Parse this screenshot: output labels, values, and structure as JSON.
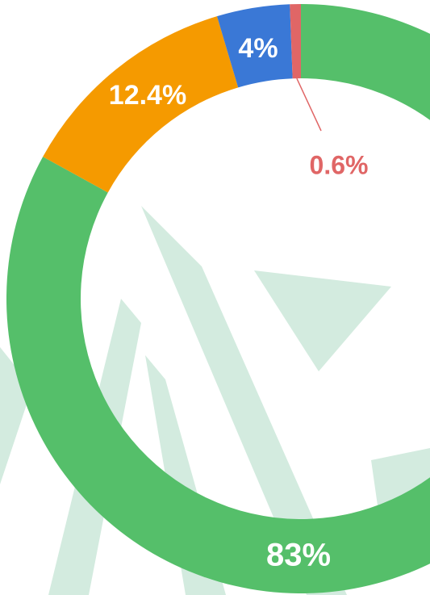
{
  "chart_data": {
    "type": "pie",
    "donut": true,
    "values": [
      83,
      12.4,
      4,
      0.6
    ],
    "value_labels": [
      "83%",
      "12.4%",
      "4%",
      "0.6%"
    ],
    "colors": [
      "#55bf6a",
      "#f59a00",
      "#3a78d6",
      "#e06666"
    ]
  }
}
